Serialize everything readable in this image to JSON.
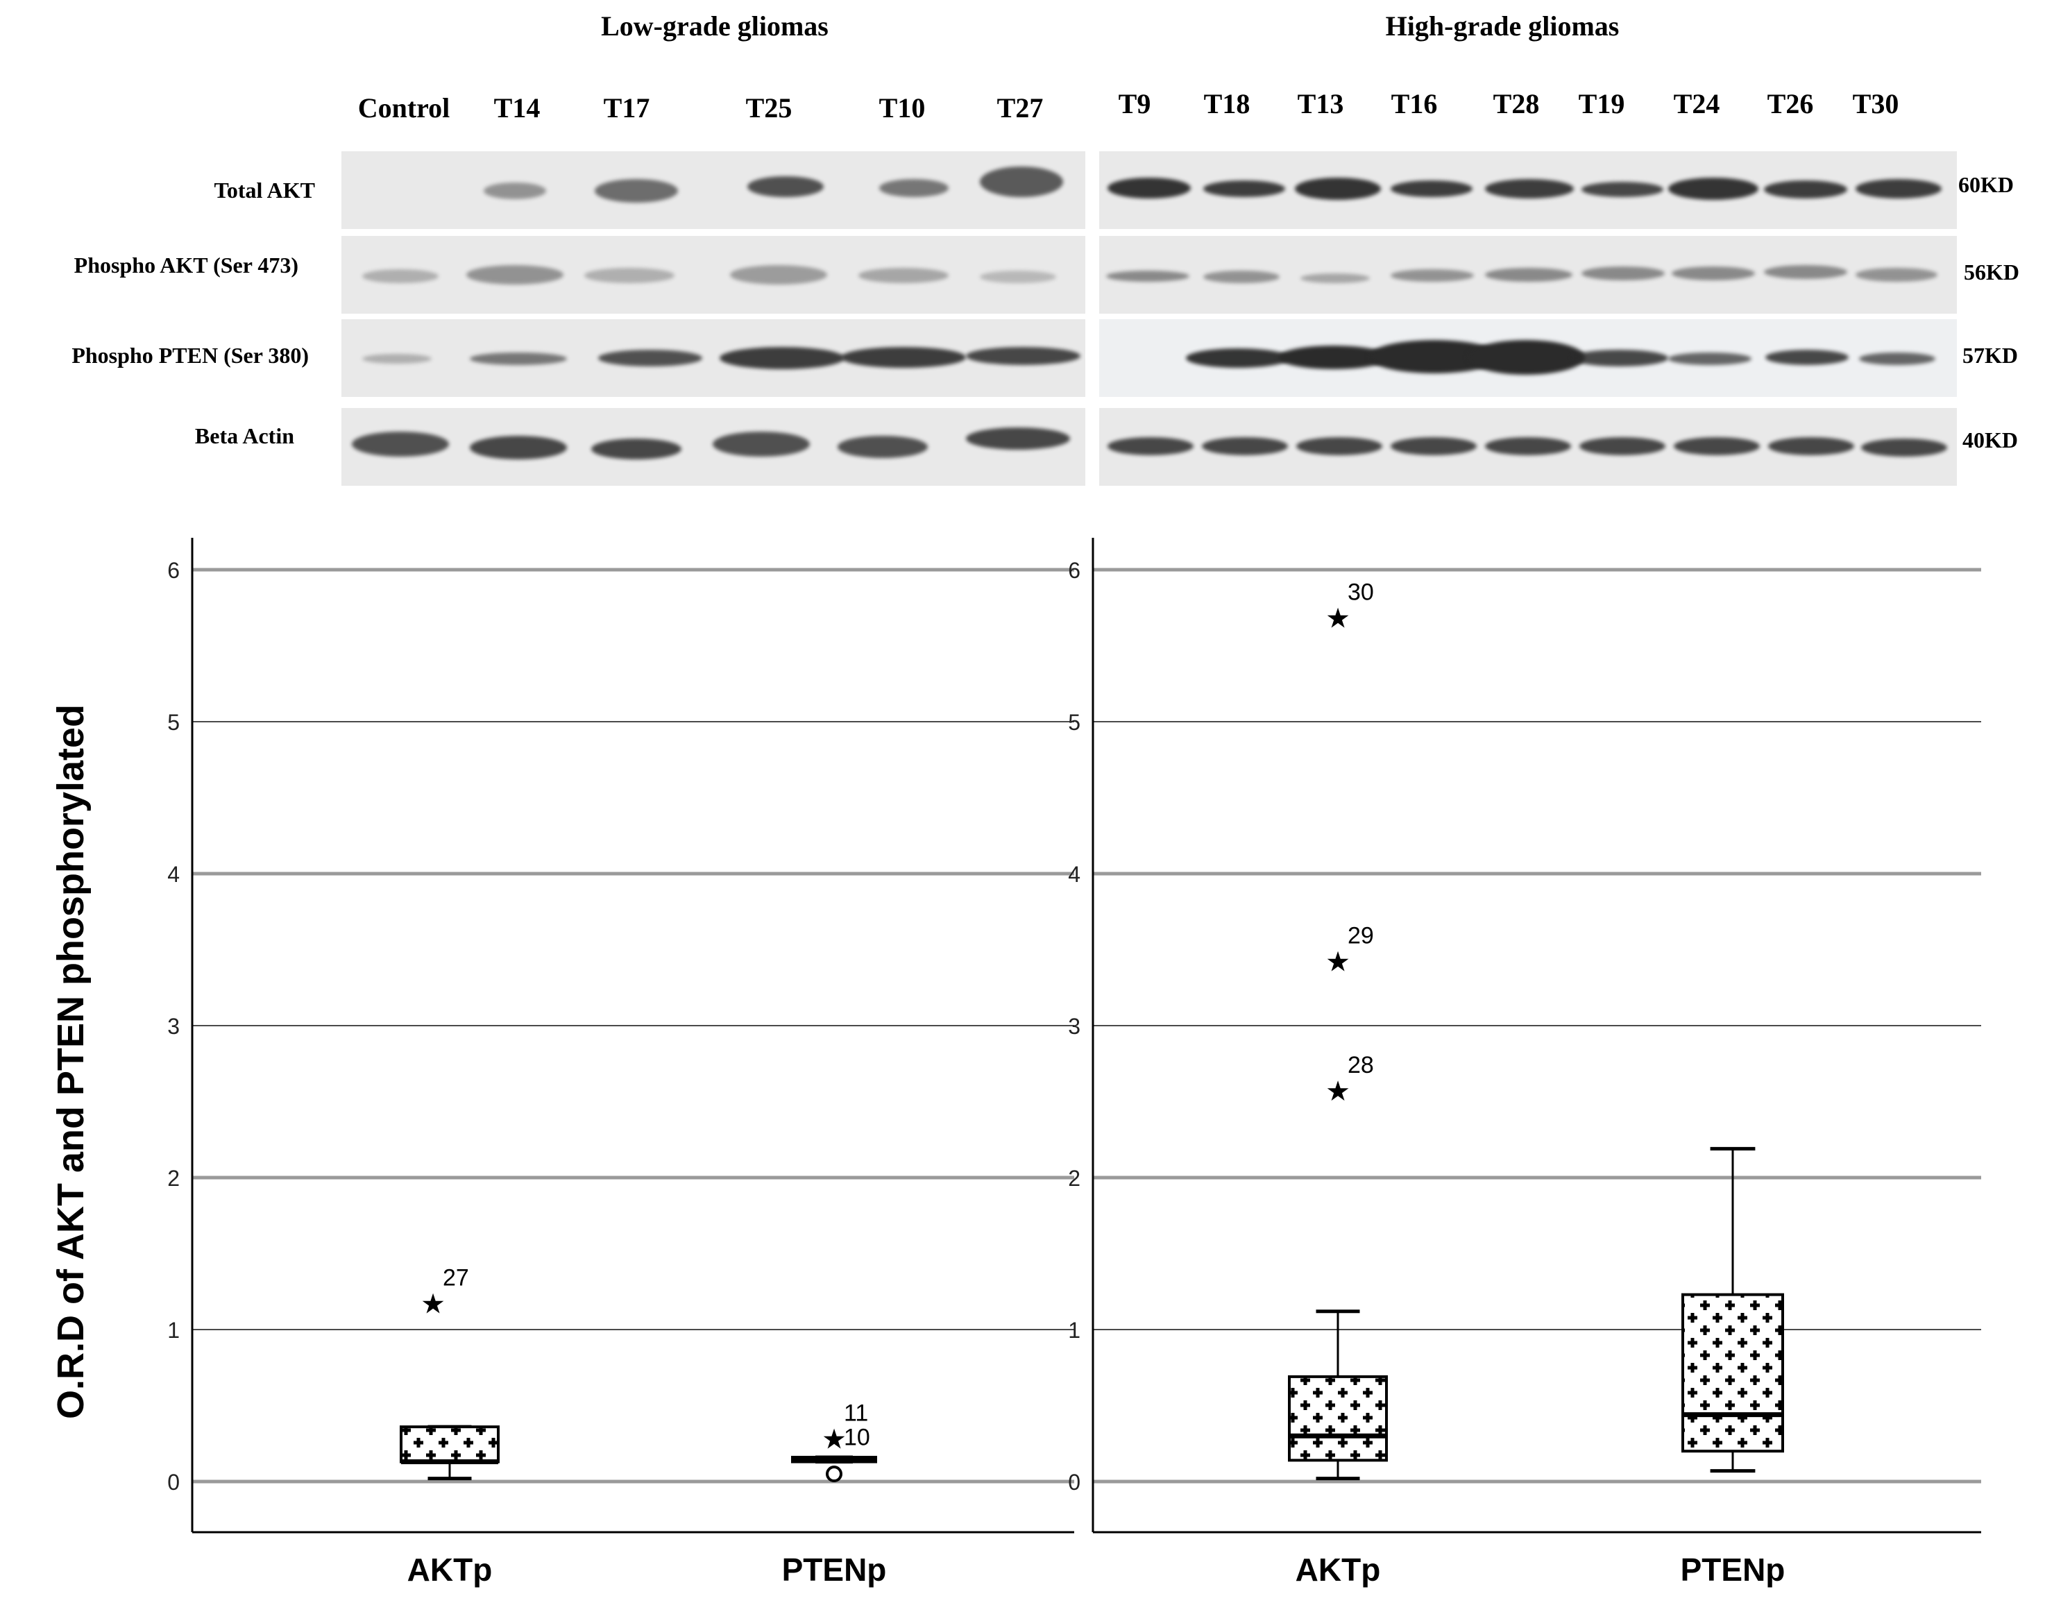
{
  "figure": {
    "group_titles": [
      "Low-grade gliomas",
      "High-grade gliomas"
    ],
    "low_grade_lanes": [
      "Control",
      "T14",
      "T17",
      "T25",
      "T10",
      "T27"
    ],
    "high_grade_lanes": [
      "T9",
      "T18",
      "T13",
      "T16",
      "T28",
      "T19",
      "T24",
      "T26",
      "T30"
    ],
    "blot_rows": [
      {
        "label": "Total AKT",
        "mw": "60KD"
      },
      {
        "label": "Phospho AKT (Ser 473)",
        "mw": "56KD"
      },
      {
        "label": "Phospho PTEN (Ser 380)",
        "mw": "57KD"
      },
      {
        "label": "Beta Actin",
        "mw": "40KD"
      }
    ]
  },
  "chart_data": {
    "type": "boxplot",
    "ylabel": "O.R.D of AKT and PTEN  phosphorylated",
    "ylim": [
      0,
      6
    ],
    "yticks": [
      "0",
      "1",
      "2",
      "3",
      "4",
      "5",
      "6"
    ],
    "panels": [
      {
        "group": "Low-grade gliomas",
        "boxes": [
          {
            "category": "AKTp",
            "min": 0.02,
            "q1": 0.13,
            "median": 0.13,
            "q3": 0.36,
            "max": 0.36,
            "outliers": [
              {
                "value": 1.19,
                "label": "27",
                "marker": "star"
              }
            ]
          },
          {
            "category": "PTENp",
            "min": 0.13,
            "q1": 0.13,
            "median": 0.15,
            "q3": 0.16,
            "max": 0.16,
            "outliers": [
              {
                "value": 0.3,
                "label": "11",
                "marker": "star"
              },
              {
                "value": 0.05,
                "label": "10",
                "marker": "circle"
              }
            ]
          }
        ]
      },
      {
        "group": "High-grade gliomas",
        "boxes": [
          {
            "category": "AKTp",
            "min": 0.02,
            "q1": 0.14,
            "median": 0.3,
            "q3": 0.69,
            "max": 1.12,
            "outliers": [
              {
                "value": 5.7,
                "label": "30",
                "marker": "star"
              },
              {
                "value": 3.44,
                "label": "29",
                "marker": "star"
              },
              {
                "value": 2.59,
                "label": "28",
                "marker": "star"
              }
            ]
          },
          {
            "category": "PTENp",
            "min": 0.07,
            "q1": 0.2,
            "median": 0.44,
            "q3": 1.23,
            "max": 2.19,
            "outliers": []
          }
        ]
      }
    ]
  }
}
